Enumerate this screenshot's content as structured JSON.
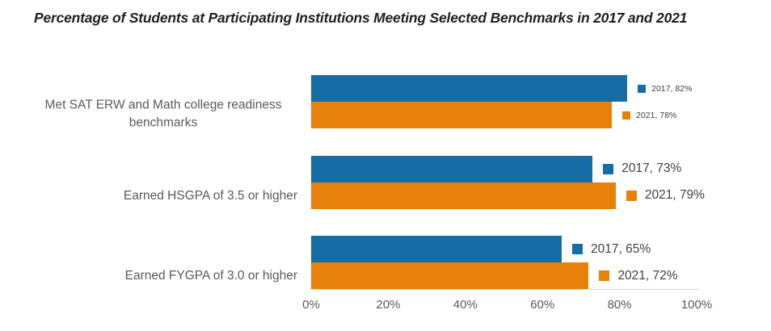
{
  "title": "Percentage of Students at Participating Institutions Meeting Selected Benchmarks in 2017 and 2021",
  "chart_data": {
    "type": "bar",
    "orientation": "horizontal",
    "title": "Percentage of Students at Participating Institutions Meeting Selected Benchmarks in 2017 and 2021",
    "categories": [
      "Met SAT ERW and Math college readiness benchmarks",
      "Earned HSGPA of 3.5 or higher",
      "Earned FYGPA of 3.0 or higher"
    ],
    "series": [
      {
        "name": "2017",
        "color": "#166CA4",
        "values": [
          82,
          73,
          65
        ]
      },
      {
        "name": "2021",
        "color": "#E8810A",
        "values": [
          78,
          79,
          72
        ]
      }
    ],
    "data_labels": [
      [
        "2017, 82%",
        "2021, 78%"
      ],
      [
        "2017, 73%",
        "2021, 79%"
      ],
      [
        "2017, 65%",
        "2021, 72%"
      ]
    ],
    "xlim": [
      0,
      100
    ],
    "x_tick_labels": [
      "0%",
      "20%",
      "40%",
      "60%",
      "80%",
      "100%"
    ],
    "xlabel": "",
    "ylabel": "",
    "grid": false,
    "legend_position": "inline-data-labels"
  },
  "colors": {
    "series_2017": "#166CA4",
    "series_2021": "#E8810A",
    "title_text": "#1F1F1F",
    "category_text": "#595959",
    "axis_text": "#595959",
    "data_label_text": "#404040",
    "axis_line": "#D6D6D6"
  }
}
